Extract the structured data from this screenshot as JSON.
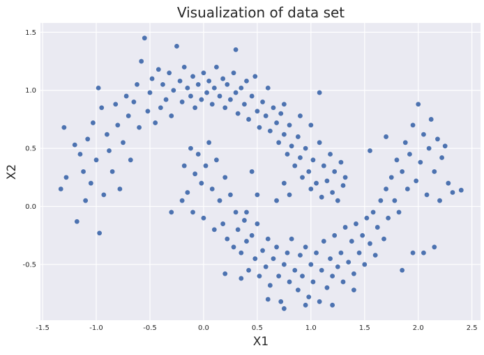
{
  "chart_data": {
    "type": "scatter",
    "title": "Visualization of data set",
    "xlabel": "X1",
    "ylabel": "X2",
    "xlim": [
      -1.52,
      2.58
    ],
    "ylim": [
      -0.98,
      1.58
    ],
    "x_ticks": [
      -1.5,
      -1.0,
      -0.5,
      0.0,
      0.5,
      1.0,
      1.5,
      2.0,
      2.5
    ],
    "x_tick_labels": [
      "-1.5",
      "-1.0",
      "-0.5",
      "0.0",
      "0.5",
      "1.0",
      "1.5",
      "2.0",
      "2.5"
    ],
    "y_ticks": [
      -0.5,
      0.0,
      0.5,
      1.0,
      1.5
    ],
    "y_tick_labels": [
      "-0.5",
      "0.0",
      "0.5",
      "1.0",
      "1.5"
    ],
    "grid": true,
    "background_color": "#EAEAF2",
    "grid_color": "#FFFFFF",
    "marker_color": "#4C72B0",
    "series": [
      {
        "points": [
          [
            -1.3,
            0.68
          ],
          [
            -1.33,
            0.15
          ],
          [
            -1.28,
            0.25
          ],
          [
            -1.2,
            0.53
          ],
          [
            -1.18,
            -0.13
          ],
          [
            -1.15,
            0.45
          ],
          [
            -1.12,
            0.3
          ],
          [
            -1.1,
            0.05
          ],
          [
            -1.08,
            0.58
          ],
          [
            -1.05,
            0.2
          ],
          [
            -1.03,
            0.72
          ],
          [
            -1.0,
            0.4
          ],
          [
            -0.98,
            1.02
          ],
          [
            -0.97,
            -0.23
          ],
          [
            -0.95,
            0.85
          ],
          [
            -0.93,
            0.1
          ],
          [
            -0.9,
            0.62
          ],
          [
            -0.88,
            0.48
          ],
          [
            -0.85,
            0.3
          ],
          [
            -0.82,
            0.88
          ],
          [
            -0.8,
            0.7
          ],
          [
            -0.78,
            0.15
          ],
          [
            -0.75,
            0.55
          ],
          [
            -0.72,
            0.95
          ],
          [
            -0.7,
            0.78
          ],
          [
            -0.68,
            0.4
          ],
          [
            -0.65,
            0.9
          ],
          [
            -0.62,
            1.05
          ],
          [
            -0.6,
            0.68
          ],
          [
            -0.58,
            1.25
          ],
          [
            -0.55,
            1.45
          ],
          [
            -0.52,
            0.82
          ],
          [
            -0.5,
            0.98
          ],
          [
            -0.48,
            1.1
          ],
          [
            -0.45,
            0.72
          ],
          [
            -0.42,
            1.18
          ],
          [
            -0.4,
            0.85
          ],
          [
            -0.38,
            1.05
          ],
          [
            -0.35,
            0.92
          ],
          [
            -0.32,
            1.15
          ],
          [
            -0.3,
            0.78
          ],
          [
            -0.28,
            1.0
          ],
          [
            -0.25,
            1.38
          ],
          [
            -0.22,
            1.08
          ],
          [
            -0.2,
            0.9
          ],
          [
            -0.18,
            1.2
          ],
          [
            -0.15,
            1.02
          ],
          [
            -0.12,
            0.95
          ],
          [
            -0.1,
            1.12
          ],
          [
            -0.08,
            0.85
          ],
          [
            -0.05,
            1.05
          ],
          [
            -0.02,
            0.92
          ],
          [
            0.0,
            1.15
          ],
          [
            0.03,
            0.98
          ],
          [
            0.05,
            1.08
          ],
          [
            0.08,
            0.88
          ],
          [
            0.1,
            1.02
          ],
          [
            0.12,
            1.2
          ],
          [
            0.15,
            0.95
          ],
          [
            0.18,
            1.1
          ],
          [
            0.2,
            0.85
          ],
          [
            0.22,
            1.05
          ],
          [
            0.25,
            0.92
          ],
          [
            0.28,
            1.15
          ],
          [
            0.3,
            0.98
          ],
          [
            0.32,
            0.8
          ],
          [
            0.3,
            1.35
          ],
          [
            0.35,
            1.02
          ],
          [
            0.38,
            0.88
          ],
          [
            0.4,
            1.08
          ],
          [
            0.42,
            0.75
          ],
          [
            0.45,
            0.95
          ],
          [
            0.48,
            1.12
          ],
          [
            0.5,
            0.82
          ],
          [
            0.52,
            0.68
          ],
          [
            0.55,
            0.9
          ],
          [
            0.58,
            0.78
          ],
          [
            0.6,
            1.02
          ],
          [
            0.62,
            0.65
          ],
          [
            0.65,
            0.85
          ],
          [
            0.68,
            0.72
          ],
          [
            0.7,
            0.55
          ],
          [
            0.72,
            0.8
          ],
          [
            0.75,
            0.62
          ],
          [
            0.78,
            0.45
          ],
          [
            0.8,
            0.7
          ],
          [
            0.82,
            0.52
          ],
          [
            0.85,
            0.35
          ],
          [
            0.88,
            0.6
          ],
          [
            0.9,
            0.42
          ],
          [
            0.92,
            0.25
          ],
          [
            0.95,
            0.5
          ],
          [
            0.98,
            0.3
          ],
          [
            1.0,
            0.15
          ],
          [
            1.02,
            0.4
          ],
          [
            1.05,
            0.2
          ],
          [
            1.08,
            0.55
          ],
          [
            1.1,
            0.08
          ],
          [
            1.12,
            0.35
          ],
          [
            1.15,
            0.22
          ],
          [
            1.18,
            0.45
          ],
          [
            1.2,
            0.12
          ],
          [
            1.22,
            0.3
          ],
          [
            1.25,
            0.05
          ],
          [
            1.28,
            0.38
          ],
          [
            1.3,
            0.18
          ],
          [
            1.32,
            0.25
          ],
          [
            1.08,
            0.98
          ],
          [
            0.75,
            0.88
          ],
          [
            0.9,
            0.78
          ],
          [
            1.0,
            0.7
          ],
          [
            0.45,
            0.3
          ],
          [
            0.5,
            0.1
          ],
          [
            -0.18,
            0.35
          ],
          [
            -0.15,
            0.12
          ],
          [
            -0.12,
            0.5
          ],
          [
            -0.1,
            -0.05
          ],
          [
            -0.08,
            0.28
          ],
          [
            -0.05,
            0.45
          ],
          [
            -0.02,
            0.2
          ],
          [
            0.0,
            -0.1
          ],
          [
            0.02,
            0.35
          ],
          [
            0.05,
            0.55
          ],
          [
            0.08,
            0.15
          ],
          [
            0.1,
            -0.2
          ],
          [
            0.12,
            0.4
          ],
          [
            0.15,
            0.05
          ],
          [
            0.18,
            -0.15
          ],
          [
            0.2,
            0.25
          ],
          [
            0.22,
            -0.28
          ],
          [
            0.25,
            0.1
          ],
          [
            0.28,
            -0.35
          ],
          [
            0.3,
            -0.05
          ],
          [
            0.32,
            -0.2
          ],
          [
            0.35,
            -0.4
          ],
          [
            0.38,
            -0.12
          ],
          [
            0.4,
            -0.3
          ],
          [
            0.42,
            -0.55
          ],
          [
            0.45,
            -0.25
          ],
          [
            0.48,
            -0.45
          ],
          [
            0.5,
            -0.15
          ],
          [
            0.52,
            -0.6
          ],
          [
            0.55,
            -0.38
          ],
          [
            0.58,
            -0.52
          ],
          [
            0.6,
            -0.28
          ],
          [
            0.62,
            -0.68
          ],
          [
            0.65,
            -0.45
          ],
          [
            0.68,
            -0.35
          ],
          [
            0.7,
            -0.6
          ],
          [
            0.72,
            -0.82
          ],
          [
            0.75,
            -0.5
          ],
          [
            0.78,
            -0.4
          ],
          [
            0.8,
            -0.65
          ],
          [
            0.82,
            -0.28
          ],
          [
            0.85,
            -0.55
          ],
          [
            0.88,
            -0.72
          ],
          [
            0.9,
            -0.42
          ],
          [
            0.92,
            -0.6
          ],
          [
            0.95,
            -0.35
          ],
          [
            0.98,
            -0.78
          ],
          [
            1.0,
            -0.5
          ],
          [
            1.02,
            -0.65
          ],
          [
            1.05,
            -0.4
          ],
          [
            1.08,
            -0.82
          ],
          [
            1.1,
            -0.55
          ],
          [
            1.12,
            -0.3
          ],
          [
            1.15,
            -0.7
          ],
          [
            1.18,
            -0.45
          ],
          [
            1.2,
            -0.6
          ],
          [
            1.22,
            -0.25
          ],
          [
            1.25,
            -0.52
          ],
          [
            1.28,
            -0.4
          ],
          [
            1.3,
            -0.65
          ],
          [
            1.32,
            -0.18
          ],
          [
            1.35,
            -0.48
          ],
          [
            1.38,
            -0.3
          ],
          [
            1.4,
            -0.58
          ],
          [
            1.42,
            -0.15
          ],
          [
            1.45,
            -0.4
          ],
          [
            1.48,
            -0.25
          ],
          [
            1.5,
            -0.5
          ],
          [
            1.52,
            -0.1
          ],
          [
            1.55,
            -0.32
          ],
          [
            1.58,
            -0.05
          ],
          [
            1.6,
            -0.42
          ],
          [
            1.62,
            -0.18
          ],
          [
            1.65,
            0.05
          ],
          [
            1.68,
            -0.28
          ],
          [
            1.7,
            0.15
          ],
          [
            1.72,
            -0.1
          ],
          [
            1.75,
            0.25
          ],
          [
            1.78,
            0.05
          ],
          [
            1.8,
            0.4
          ],
          [
            1.82,
            -0.05
          ],
          [
            1.85,
            0.3
          ],
          [
            1.88,
            0.55
          ],
          [
            1.9,
            0.15
          ],
          [
            1.92,
            0.45
          ],
          [
            1.95,
            0.7
          ],
          [
            1.98,
            0.22
          ],
          [
            2.0,
            0.88
          ],
          [
            2.02,
            0.38
          ],
          [
            2.05,
            0.62
          ],
          [
            2.08,
            0.1
          ],
          [
            2.1,
            0.5
          ],
          [
            2.12,
            0.75
          ],
          [
            2.15,
            0.3
          ],
          [
            2.18,
            0.58
          ],
          [
            2.2,
            0.05
          ],
          [
            2.22,
            0.42
          ],
          [
            2.25,
            0.52
          ],
          [
            2.28,
            0.2
          ],
          [
            2.32,
            0.12
          ],
          [
            2.4,
            0.14
          ],
          [
            1.95,
            -0.4
          ],
          [
            2.05,
            -0.4
          ],
          [
            2.15,
            -0.35
          ],
          [
            1.85,
            -0.55
          ],
          [
            1.7,
            0.6
          ],
          [
            1.55,
            0.48
          ],
          [
            1.4,
            -0.72
          ],
          [
            1.2,
            -0.85
          ],
          [
            0.95,
            -0.85
          ],
          [
            0.75,
            -0.88
          ],
          [
            0.6,
            -0.8
          ],
          [
            0.35,
            -0.62
          ],
          [
            0.2,
            -0.58
          ],
          [
            -0.3,
            -0.05
          ],
          [
            -0.2,
            0.05
          ],
          [
            0.75,
            0.2
          ],
          [
            0.68,
            0.05
          ],
          [
            0.8,
            0.1
          ],
          [
            0.4,
            -0.05
          ]
        ]
      }
    ]
  }
}
